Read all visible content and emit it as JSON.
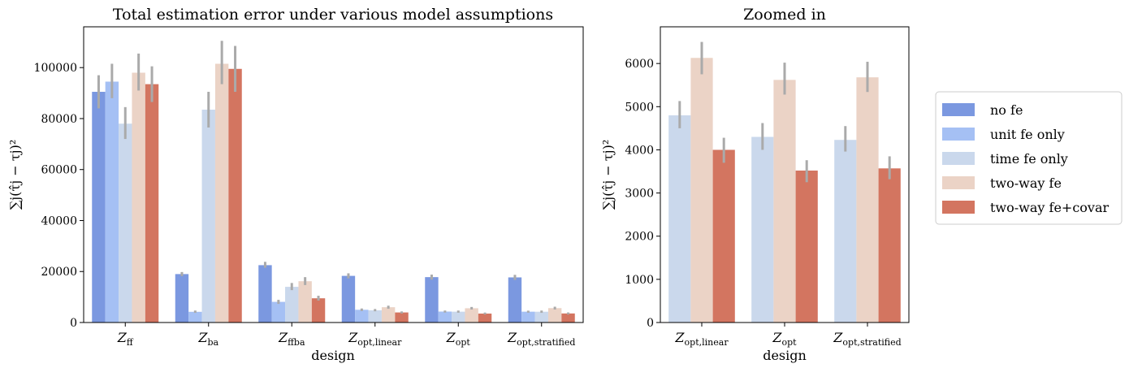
{
  "chart_data": [
    {
      "type": "bar",
      "title": "Total estimation error under various model assumptions",
      "xlabel": "design",
      "ylabel": "∑j(τ̂j − τj)²",
      "ylim": [
        0,
        116000
      ],
      "yticks": [
        0,
        20000,
        40000,
        60000,
        80000,
        100000
      ],
      "ytick_labels": [
        "0",
        "20000",
        "40000",
        "60000",
        "80000",
        "100000"
      ],
      "categories": [
        {
          "base": "Z",
          "sub": "ff"
        },
        {
          "base": "Z",
          "sub": "ba"
        },
        {
          "base": "Z",
          "sub": "ffba"
        },
        {
          "base": "Z",
          "sub": "opt,linear"
        },
        {
          "base": "Z",
          "sub": "opt"
        },
        {
          "base": "Z",
          "sub": "opt,stratified"
        }
      ],
      "series": [
        {
          "name": "no fe",
          "color": "#7b98e0",
          "values": [
            90500,
            19000,
            22500,
            18300,
            17800,
            17700
          ],
          "errors": [
            [
              84000,
              97000
            ],
            [
              18200,
              19800
            ],
            [
              21500,
              23800
            ],
            [
              17300,
              19300
            ],
            [
              16800,
              18800
            ],
            [
              16700,
              18700
            ]
          ]
        },
        {
          "name": "unit fe only",
          "color": "#a5c0f4",
          "values": [
            94500,
            4200,
            8100,
            5000,
            4300,
            4250
          ],
          "errors": [
            [
              88000,
              101500
            ],
            [
              3800,
              4700
            ],
            [
              7300,
              8900
            ],
            [
              4500,
              5500
            ],
            [
              3900,
              4700
            ],
            [
              3850,
              4650
            ]
          ]
        },
        {
          "name": "time fe only",
          "color": "#cad8ec",
          "values": [
            78000,
            83500,
            14000,
            4800,
            4250,
            4230
          ],
          "errors": [
            [
              72000,
              84500
            ],
            [
              76500,
              90500
            ],
            [
              12700,
              15500
            ],
            [
              4400,
              5300
            ],
            [
              3850,
              4700
            ],
            [
              3800,
              4700
            ]
          ]
        },
        {
          "name": "two-way fe",
          "color": "#ebd3c6",
          "values": [
            98000,
            101500,
            16200,
            6000,
            5600,
            5650
          ],
          "errors": [
            [
              91000,
              105500
            ],
            [
              93500,
              110500
            ],
            [
              14700,
              17800
            ],
            [
              5400,
              6600
            ],
            [
              5100,
              6100
            ],
            [
              5100,
              6200
            ]
          ]
        },
        {
          "name": "two-way fe+covar",
          "color": "#d37560",
          "values": [
            93500,
            99500,
            9500,
            3950,
            3500,
            3550
          ],
          "errors": [
            [
              86500,
              100500
            ],
            [
              90500,
              108500
            ],
            [
              8600,
              10500
            ],
            [
              3550,
              4350
            ],
            [
              3150,
              3900
            ],
            [
              3150,
              3950
            ]
          ]
        }
      ]
    },
    {
      "type": "bar",
      "title": "Zoomed in",
      "xlabel": "design",
      "ylabel": "∑j(τ̂j − τj)²",
      "ylim": [
        0,
        6850
      ],
      "yticks": [
        0,
        1000,
        2000,
        3000,
        4000,
        5000,
        6000
      ],
      "ytick_labels": [
        "0",
        "1000",
        "2000",
        "3000",
        "4000",
        "5000",
        "6000"
      ],
      "categories": [
        {
          "base": "Z",
          "sub": "opt,linear"
        },
        {
          "base": "Z",
          "sub": "opt"
        },
        {
          "base": "Z",
          "sub": "opt,stratified"
        }
      ],
      "series": [
        {
          "name": "time fe only",
          "color": "#cad8ec",
          "values": [
            4800,
            4300,
            4230
          ],
          "errors": [
            [
              4500,
              5130
            ],
            [
              4000,
              4620
            ],
            [
              3960,
              4550
            ]
          ]
        },
        {
          "name": "two-way fe",
          "color": "#ebd3c6",
          "values": [
            6130,
            5620,
            5680
          ],
          "errors": [
            [
              5750,
              6500
            ],
            [
              5280,
              6020
            ],
            [
              5340,
              6040
            ]
          ]
        },
        {
          "name": "two-way fe+covar",
          "color": "#d37560",
          "values": [
            4000,
            3520,
            3570
          ],
          "errors": [
            [
              3700,
              4280
            ],
            [
              3250,
              3760
            ],
            [
              3320,
              3850
            ]
          ]
        }
      ]
    }
  ],
  "legend": {
    "placement": "right",
    "items": [
      {
        "label": "no fe",
        "color": "#7b98e0"
      },
      {
        "label": "unit fe only",
        "color": "#a5c0f4"
      },
      {
        "label": "time fe only",
        "color": "#cad8ec"
      },
      {
        "label": "two-way fe",
        "color": "#ebd3c6"
      },
      {
        "label": "two-way fe+covar",
        "color": "#d37560"
      }
    ]
  },
  "errorbar_color": "#aaaaaa"
}
